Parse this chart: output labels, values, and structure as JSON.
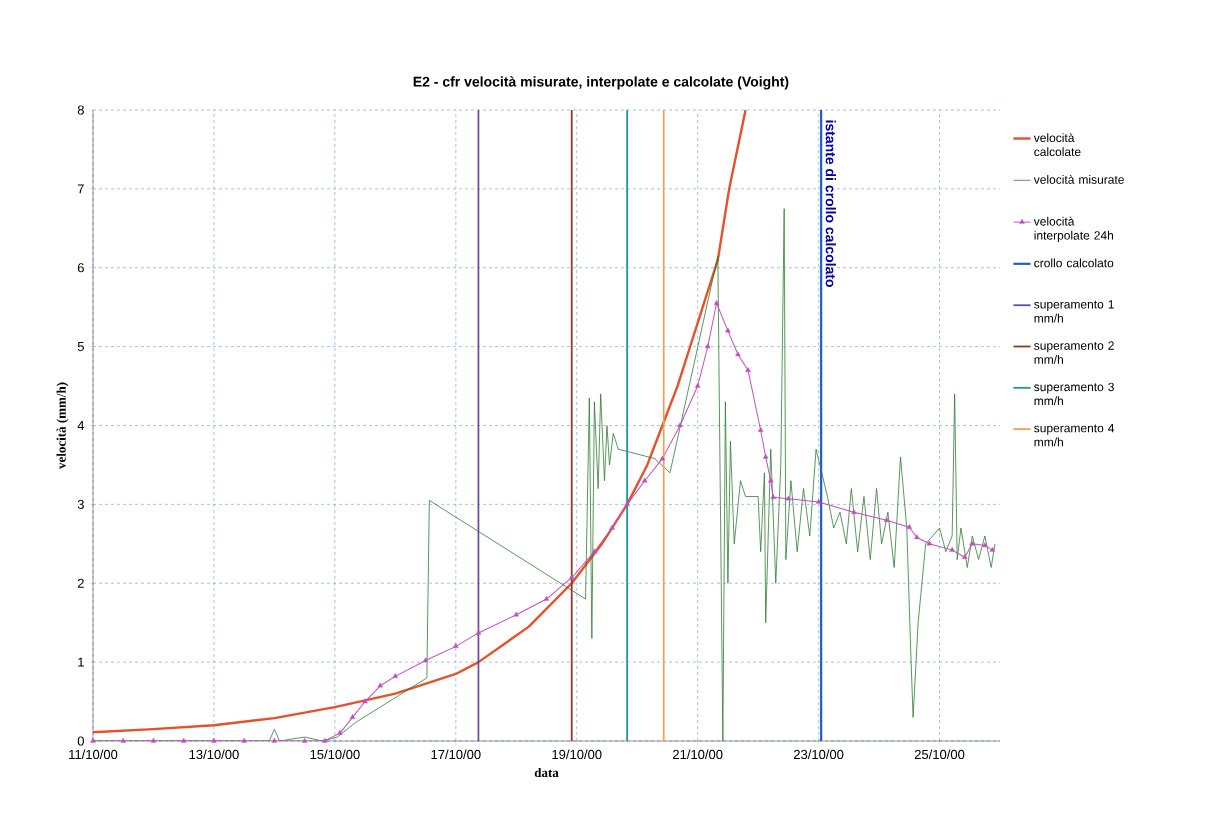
{
  "chart_data": {
    "type": "line",
    "title": "E2 - cfr velocità misurate, interpolate e calcolate (Voight)",
    "xlabel": "data",
    "ylabel": "velocità (mm/h)",
    "xlim": [
      "2000-10-11",
      "2000-10-26"
    ],
    "ylim": [
      0,
      8
    ],
    "xticks": [
      {
        "value": "2000-10-11",
        "label": "11/10/00"
      },
      {
        "value": "2000-10-13",
        "label": "13/10/00"
      },
      {
        "value": "2000-10-15",
        "label": "15/10/00"
      },
      {
        "value": "2000-10-17",
        "label": "17/10/00"
      },
      {
        "value": "2000-10-19",
        "label": "19/10/00"
      },
      {
        "value": "2000-10-21",
        "label": "21/10/00"
      },
      {
        "value": "2000-10-23",
        "label": "23/10/00"
      },
      {
        "value": "2000-10-25",
        "label": "25/10/00"
      }
    ],
    "yticks": [
      0,
      1,
      2,
      3,
      4,
      5,
      6,
      7,
      8
    ],
    "grid": true,
    "legend": "right",
    "marker": "none",
    "line_style": "solid",
    "annotations": [
      {
        "text": "istante di crollo calcolato",
        "x": "2000-10-23T01:00",
        "y": 8
      }
    ],
    "series": [
      {
        "name": "velocità calcolate",
        "color": "#e8502a",
        "x": [
          "2000-10-11T00:00",
          "2000-10-12T00:00",
          "2000-10-13T00:00",
          "2000-10-14T00:00",
          "2000-10-15T00:00",
          "2000-10-16T00:00",
          "2000-10-17T00:00",
          "2000-10-17T09:00",
          "2000-10-18T05:00",
          "2000-10-18T22:00",
          "2000-10-19T10:00",
          "2000-10-19T20:00",
          "2000-10-20T04:00",
          "2000-10-20T10:00",
          "2000-10-20T16:00",
          "2000-10-20T21:00",
          "2000-10-21T02:00",
          "2000-10-21T08:00",
          "2000-10-21T12:30",
          "2000-10-21T19:00"
        ],
        "values": [
          0.11,
          0.15,
          0.2,
          0.29,
          0.43,
          0.6,
          0.85,
          1.0,
          1.45,
          2.0,
          2.5,
          3.0,
          3.5,
          4.0,
          4.5,
          5.0,
          5.5,
          6.1,
          7.0,
          8.0
        ]
      },
      {
        "name": "velocità misurate",
        "color": "#2e7d32",
        "x": [
          "2000-10-11T00:00",
          "2000-10-13T22:00",
          "2000-10-14T00:00",
          "2000-10-14T02:00",
          "2000-10-14T12:00",
          "2000-10-14T19:00",
          "2000-10-15T01:00",
          "2000-10-15T08:00",
          "2000-10-16T12:30",
          "2000-10-16T13:30",
          "2000-10-19T03:30",
          "2000-10-19T05:00",
          "2000-10-19T06:00",
          "2000-10-19T07:00",
          "2000-10-19T08:30",
          "2000-10-19T09:30",
          "2000-10-19T11:00",
          "2000-10-19T12:00",
          "2000-10-19T13:00",
          "2000-10-19T14:30",
          "2000-10-19T16:30",
          "2000-10-20T07:00",
          "2000-10-20T13:00",
          "2000-10-21T08:00",
          "2000-10-21T10:00",
          "2000-10-21T11:00",
          "2000-10-21T12:00",
          "2000-10-21T13:00",
          "2000-10-21T14:30",
          "2000-10-21T17:00",
          "2000-10-21T19:00",
          "2000-10-22T00:00",
          "2000-10-22T01:00",
          "2000-10-22T02:30",
          "2000-10-22T03:00",
          "2000-10-22T05:00",
          "2000-10-22T07:00",
          "2000-10-22T09:00",
          "2000-10-22T10:20",
          "2000-10-22T11:00",
          "2000-10-22T13:00",
          "2000-10-22T15:30",
          "2000-10-22T18:00",
          "2000-10-22T20:30",
          "2000-10-22T23:00",
          "2000-10-23T01:00",
          "2000-10-23T03:30",
          "2000-10-23T06:00",
          "2000-10-23T08:30",
          "2000-10-23T11:00",
          "2000-10-23T13:00",
          "2000-10-23T15:30",
          "2000-10-23T18:00",
          "2000-10-23T20:30",
          "2000-10-23T23:00",
          "2000-10-24T01:00",
          "2000-10-24T03:30",
          "2000-10-24T06:00",
          "2000-10-24T08:30",
          "2000-10-24T11:00",
          "2000-10-24T12:30",
          "2000-10-24T13:30",
          "2000-10-24T15:30",
          "2000-10-24T18:30",
          "2000-10-25T00:00",
          "2000-10-25T02:30",
          "2000-10-25T05:00",
          "2000-10-25T06:00",
          "2000-10-25T07:00",
          "2000-10-25T08:30",
          "2000-10-25T11:00",
          "2000-10-25T13:00",
          "2000-10-25T15:30",
          "2000-10-25T18:00",
          "2000-10-25T20:30",
          "2000-10-25T22:00"
        ],
        "values": [
          0,
          0,
          0.15,
          0,
          0.05,
          0,
          0.05,
          0.23,
          0.8,
          3.05,
          1.8,
          4.35,
          1.3,
          4.3,
          3.2,
          4.4,
          3.3,
          4.0,
          3.5,
          3.9,
          3.7,
          3.58,
          3.4,
          6.15,
          0,
          4.3,
          2.0,
          3.8,
          2.5,
          3.3,
          3.1,
          3.1,
          2.4,
          3.4,
          1.5,
          3.7,
          2.0,
          3.5,
          6.75,
          2.3,
          3.3,
          2.4,
          3.2,
          2.6,
          3.7,
          null,
          3.1,
          2.7,
          2.9,
          2.5,
          3.2,
          2.4,
          3.1,
          2.3,
          3.2,
          2.5,
          2.9,
          2.2,
          3.6,
          2.7,
          1.2,
          0.3,
          1.5,
          2.5,
          2.7,
          2.4,
          2.6,
          4.4,
          2.3,
          2.7,
          2.2,
          2.6,
          2.3,
          2.6,
          2.2,
          2.5
        ]
      },
      {
        "name": "velocità interpolate 24h",
        "color": "#c050c0",
        "marker": "triangle",
        "x": [
          "2000-10-11T00:00",
          "2000-10-11T12:00",
          "2000-10-12T00:00",
          "2000-10-12T12:00",
          "2000-10-13T00:00",
          "2000-10-13T12:00",
          "2000-10-14T00:00",
          "2000-10-14T12:00",
          "2000-10-14T20:00",
          "2000-10-15T02:00",
          "2000-10-15T07:00",
          "2000-10-15T12:00",
          "2000-10-15T18:00",
          "2000-10-16T00:00",
          "2000-10-16T12:00",
          "2000-10-17T00:00",
          "2000-10-17T09:00",
          "2000-10-18T00:00",
          "2000-10-18T12:00",
          "2000-10-18T22:00",
          "2000-10-19T07:00",
          "2000-10-19T14:00",
          "2000-10-19T20:00",
          "2000-10-20T03:00",
          "2000-10-20T10:00",
          "2000-10-20T17:00",
          "2000-10-21T00:00",
          "2000-10-21T04:00",
          "2000-10-21T07:30",
          "2000-10-21T12:00",
          "2000-10-21T16:00",
          "2000-10-21T20:00",
          "2000-10-22T01:00",
          "2000-10-22T03:00",
          "2000-10-22T05:00",
          "2000-10-22T06:00",
          "2000-10-22T12:00",
          "2000-10-23T00:00",
          "2000-10-23T14:00",
          "2000-10-24T03:00",
          "2000-10-24T12:00",
          "2000-10-24T15:00",
          "2000-10-24T20:00",
          "2000-10-25T05:00",
          "2000-10-25T10:00",
          "2000-10-25T13:00",
          "2000-10-25T18:00",
          "2000-10-25T21:00"
        ],
        "values": [
          0,
          0,
          0,
          0,
          0,
          0,
          0,
          0,
          0,
          0.1,
          0.3,
          0.5,
          0.7,
          0.82,
          1.02,
          1.2,
          1.37,
          1.6,
          1.8,
          2.07,
          2.4,
          2.7,
          3.0,
          3.3,
          3.58,
          4.0,
          4.5,
          5.0,
          5.55,
          5.2,
          4.9,
          4.7,
          3.94,
          3.6,
          3.3,
          3.09,
          3.07,
          3.03,
          2.9,
          2.8,
          2.71,
          2.58,
          2.5,
          2.42,
          2.33,
          2.5,
          2.48,
          2.42
        ]
      },
      {
        "name": "crollo calcolato",
        "color": "#1f5fc0",
        "x": [
          "2000-10-23T01:00",
          "2000-10-23T01:00"
        ],
        "values": [
          0,
          8
        ]
      },
      {
        "name": "superamento 1 mm/h",
        "color": "#6a4a9a",
        "x": [
          "2000-10-17T09:00",
          "2000-10-17T09:00"
        ],
        "values": [
          0,
          8
        ]
      },
      {
        "name": "superamento 2 mm/h",
        "color": "#8b3a2a",
        "x": [
          "2000-10-18T22:00",
          "2000-10-18T22:00"
        ],
        "values": [
          0,
          8
        ]
      },
      {
        "name": "superamento 3 mm/h",
        "color": "#1a9a9a",
        "x": [
          "2000-10-19T20:00",
          "2000-10-19T20:00"
        ],
        "values": [
          0,
          8
        ]
      },
      {
        "name": "superamento 4 mm/h",
        "color": "#f0a050",
        "x": [
          "2000-10-20T10:30",
          "2000-10-20T10:30"
        ],
        "values": [
          0,
          8
        ]
      }
    ]
  }
}
